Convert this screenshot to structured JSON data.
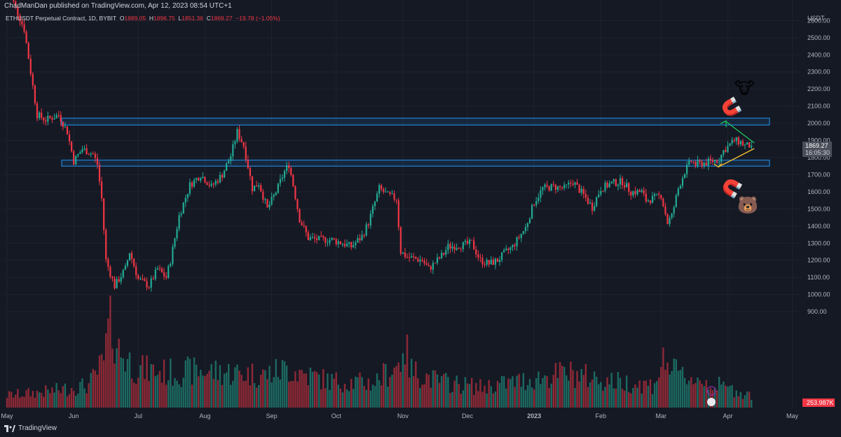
{
  "header": {
    "published": "ChadManDan published on TradingView.com, Apr 12, 2023 08:54 UTC+1",
    "symbol": "ETHUSDT Perpetual Contract, 1D, BYBIT",
    "o_label": "O",
    "o_value": "1889.05",
    "h_label": "H",
    "h_value": "1896.75",
    "l_label": "L",
    "l_value": "1851.36",
    "c_label": "C",
    "c_value": "1869.27",
    "change": "−19.78 (−1.05%)"
  },
  "branding": {
    "name": "TradingView"
  },
  "price_axis": {
    "currency": "USDT",
    "last_price": "1869.27",
    "countdown": "16:05:30",
    "volume_badge": "253.987K"
  },
  "colors": {
    "background": "#151924",
    "up": "#22ab94",
    "down": "#f23645",
    "zone": "#2196f3",
    "up_arrow": "#22c55e",
    "down_arrow": "#fbc02d"
  },
  "annotations": {
    "bull_emoji": "🐮",
    "bear_emoji": "🐻",
    "magnet_emoji": "🧲"
  },
  "chart_data": {
    "type": "candlestick",
    "timeframe": "1D",
    "ylim": [
      880,
      2720
    ],
    "y_ticks": [
      900,
      1000,
      1100,
      1200,
      1300,
      1400,
      1500,
      1600,
      1700,
      1800,
      1900,
      2000,
      2100,
      2200,
      2300,
      2400,
      2500,
      2600
    ],
    "y_tick_labels": [
      "900.00",
      "1000.00",
      "1100.00",
      "1200.00",
      "1300.00",
      "1400.00",
      "1500.00",
      "1600.00",
      "1700.00",
      "1800.00",
      "1900.00",
      "2000.00",
      "2100.00",
      "2200.00",
      "2300.00",
      "2400.00",
      "2500.00",
      "2600.00"
    ],
    "x_tick_labels": [
      "May",
      "Jun",
      "Jul",
      "Aug",
      "Sep",
      "Oct",
      "Nov",
      "Dec",
      "2023",
      "Feb",
      "Mar",
      "Apr",
      "May"
    ],
    "x_tick_days": [
      0,
      31,
      61,
      92,
      123,
      153,
      184,
      214,
      245,
      276,
      304,
      335,
      365
    ],
    "last_day": 346,
    "grid": true,
    "zones": [
      {
        "low": 1990,
        "high": 2030
      },
      {
        "low": 1750,
        "high": 1785
      }
    ],
    "price_path": [
      [
        0,
        2800
      ],
      [
        8,
        2550
      ],
      [
        14,
        2050
      ],
      [
        18,
        2020
      ],
      [
        24,
        2050
      ],
      [
        28,
        1950
      ],
      [
        31,
        1780
      ],
      [
        35,
        1850
      ],
      [
        40,
        1820
      ],
      [
        42,
        1760
      ],
      [
        44,
        1560
      ],
      [
        46,
        1200
      ],
      [
        50,
        1050
      ],
      [
        55,
        1150
      ],
      [
        57,
        1250
      ],
      [
        61,
        1090
      ],
      [
        66,
        1050
      ],
      [
        70,
        1150
      ],
      [
        74,
        1100
      ],
      [
        76,
        1200
      ],
      [
        80,
        1460
      ],
      [
        85,
        1640
      ],
      [
        90,
        1700
      ],
      [
        95,
        1630
      ],
      [
        100,
        1700
      ],
      [
        104,
        1810
      ],
      [
        107,
        1950
      ],
      [
        110,
        1870
      ],
      [
        112,
        1750
      ],
      [
        114,
        1620
      ],
      [
        117,
        1650
      ],
      [
        121,
        1500
      ],
      [
        125,
        1600
      ],
      [
        129,
        1720
      ],
      [
        131,
        1760
      ],
      [
        133,
        1640
      ],
      [
        136,
        1440
      ],
      [
        140,
        1330
      ],
      [
        146,
        1320
      ],
      [
        151,
        1320
      ],
      [
        156,
        1300
      ],
      [
        160,
        1280
      ],
      [
        165,
        1340
      ],
      [
        168,
        1420
      ],
      [
        173,
        1620
      ],
      [
        177,
        1580
      ],
      [
        181,
        1560
      ],
      [
        183,
        1250
      ],
      [
        186,
        1220
      ],
      [
        193,
        1200
      ],
      [
        196,
        1150
      ],
      [
        200,
        1200
      ],
      [
        203,
        1240
      ],
      [
        205,
        1280
      ],
      [
        212,
        1290
      ],
      [
        216,
        1300
      ],
      [
        220,
        1200
      ],
      [
        224,
        1180
      ],
      [
        228,
        1200
      ],
      [
        232,
        1250
      ],
      [
        235,
        1280
      ],
      [
        241,
        1390
      ],
      [
        245,
        1540
      ],
      [
        249,
        1620
      ],
      [
        254,
        1630
      ],
      [
        259,
        1620
      ],
      [
        263,
        1660
      ],
      [
        268,
        1580
      ],
      [
        272,
        1510
      ],
      [
        276,
        1620
      ],
      [
        281,
        1650
      ],
      [
        286,
        1660
      ],
      [
        290,
        1600
      ],
      [
        295,
        1600
      ],
      [
        297,
        1550
      ],
      [
        300,
        1560
      ],
      [
        304,
        1580
      ],
      [
        307,
        1420
      ],
      [
        309,
        1460
      ],
      [
        312,
        1620
      ],
      [
        315,
        1720
      ],
      [
        318,
        1780
      ],
      [
        320,
        1760
      ],
      [
        325,
        1770
      ],
      [
        331,
        1790
      ],
      [
        333,
        1840
      ],
      [
        338,
        1900
      ],
      [
        341,
        1890
      ],
      [
        343,
        1870
      ],
      [
        346,
        1869
      ]
    ],
    "volume_path": [
      [
        0,
        30
      ],
      [
        20,
        40
      ],
      [
        38,
        55
      ],
      [
        45,
        110
      ],
      [
        48,
        220
      ],
      [
        52,
        140
      ],
      [
        60,
        95
      ],
      [
        75,
        85
      ],
      [
        90,
        90
      ],
      [
        105,
        85
      ],
      [
        120,
        80
      ],
      [
        130,
        95
      ],
      [
        150,
        65
      ],
      [
        170,
        60
      ],
      [
        183,
        110
      ],
      [
        184,
        175
      ],
      [
        185,
        145
      ],
      [
        188,
        90
      ],
      [
        200,
        65
      ],
      [
        220,
        50
      ],
      [
        245,
        70
      ],
      [
        260,
        85
      ],
      [
        280,
        65
      ],
      [
        300,
        55
      ],
      [
        306,
        120
      ],
      [
        310,
        85
      ],
      [
        330,
        55
      ],
      [
        346,
        30
      ]
    ],
    "volume_ylim": [
      0,
      260
    ]
  }
}
